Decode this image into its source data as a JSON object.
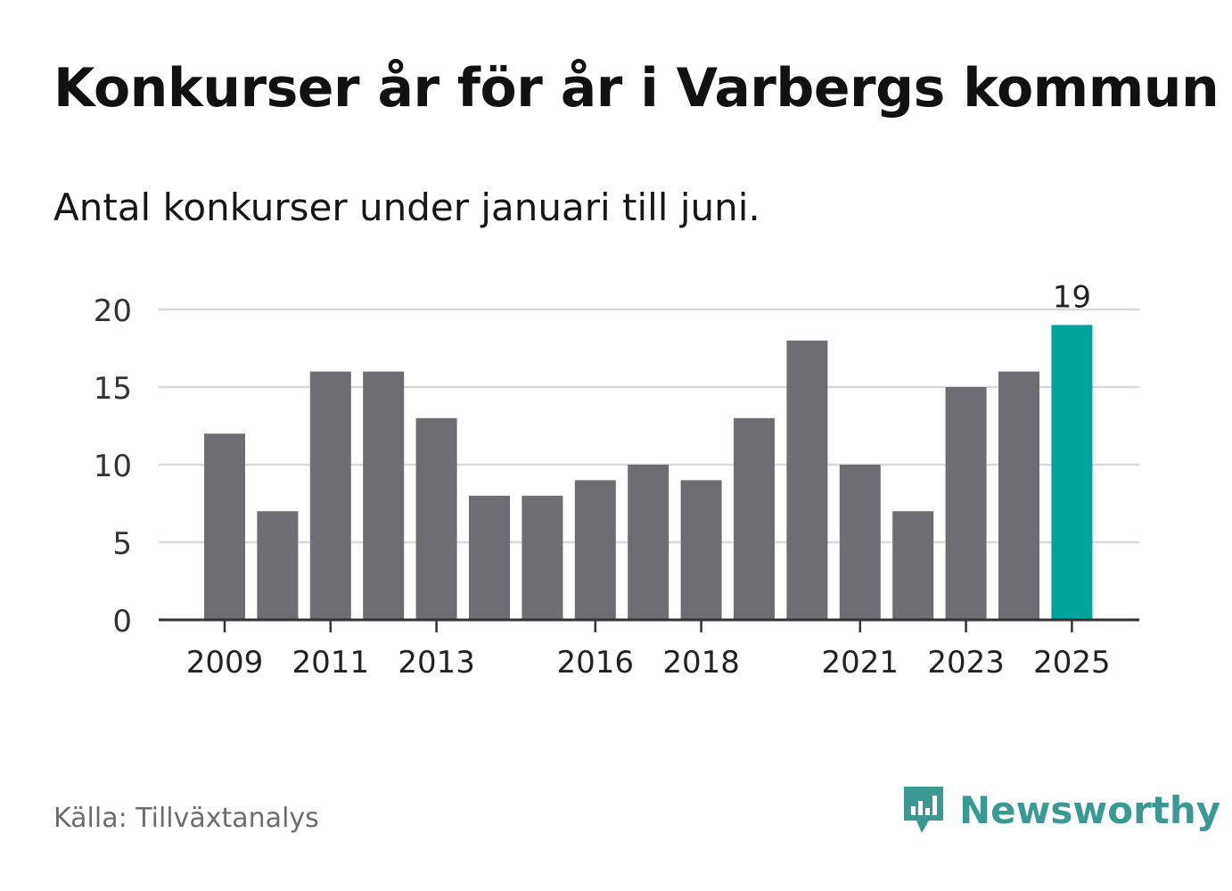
{
  "title": "Konkurser år för år i Varbergs kommun",
  "subtitle": "Antal konkurser under januari till juni.",
  "source": "Källa: Tillväxtanalys",
  "brand": {
    "name": "Newsworthy",
    "icon": "newsworthy-logo-icon",
    "color": "#3a9a93"
  },
  "colors": {
    "bar": "#6e6d73",
    "highlight": "#00a39a",
    "grid": "#d9d9d9",
    "axis": "#333333"
  },
  "chart_data": {
    "type": "bar",
    "categories": [
      "2009",
      "2010",
      "2011",
      "2012",
      "2013",
      "2014",
      "2015",
      "2016",
      "2017",
      "2018",
      "2019",
      "2020",
      "2021",
      "2022",
      "2023",
      "2024",
      "2025"
    ],
    "values": [
      12,
      7,
      16,
      16,
      13,
      8,
      8,
      9,
      10,
      9,
      13,
      18,
      10,
      7,
      15,
      16,
      19
    ],
    "x_tick_labels": [
      "2009",
      "2011",
      "2013",
      "2016",
      "2018",
      "2021",
      "2023",
      "2025"
    ],
    "y_ticks": [
      0,
      5,
      10,
      15,
      20
    ],
    "ylim": [
      0,
      20
    ],
    "highlight_category": "2025",
    "data_labels": [
      {
        "category": "2025",
        "text": "19"
      }
    ],
    "grid": true
  }
}
